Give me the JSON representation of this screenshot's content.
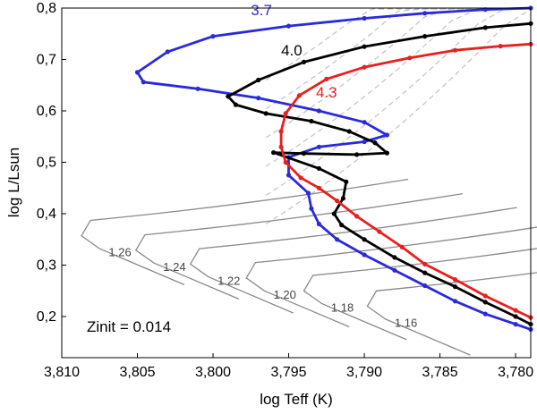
{
  "chart_data": {
    "type": "line",
    "title": "",
    "xlabel": "log Teff (K)",
    "ylabel": "log L/Lsun",
    "xlim": [
      3.81,
      3.779
    ],
    "ylim": [
      0.12,
      0.8
    ],
    "x_inverted": true,
    "decimal_separator": ",",
    "xticks": [
      3.81,
      3.805,
      3.8,
      3.795,
      3.79,
      3.785,
      3.78
    ],
    "xtick_labels": [
      "3,810",
      "3,805",
      "3,800",
      "3,795",
      "3,790",
      "3,785",
      "3,780"
    ],
    "yticks": [
      0.2,
      0.3,
      0.4,
      0.5,
      0.6,
      0.7,
      0.8
    ],
    "ytick_labels": [
      "0,2",
      "0,3",
      "0,4",
      "0,5",
      "0,6",
      "0,7",
      "0,8"
    ],
    "annotation": "Zinit = 0.014",
    "colors": {
      "blue": "#2a2adb",
      "black": "#000000",
      "red": "#e81f1f",
      "grey": "#8a8a8a",
      "dashed": "#bdbdbd"
    },
    "series": [
      {
        "name": "3.7",
        "color": "#2a2adb",
        "label_at": [
          3.7968,
          0.786
        ],
        "points": [
          [
            3.779,
            0.8
          ],
          [
            3.782,
            0.797
          ],
          [
            3.786,
            0.79
          ],
          [
            3.79,
            0.78
          ],
          [
            3.795,
            0.765
          ],
          [
            3.8,
            0.745
          ],
          [
            3.803,
            0.715
          ],
          [
            3.805,
            0.675
          ],
          [
            3.8046,
            0.656
          ],
          [
            3.801,
            0.643
          ],
          [
            3.797,
            0.625
          ],
          [
            3.793,
            0.6
          ],
          [
            3.79,
            0.578
          ],
          [
            3.7885,
            0.553
          ],
          [
            3.79,
            0.54
          ],
          [
            3.793,
            0.53
          ],
          [
            3.795,
            0.51
          ],
          [
            3.795,
            0.475
          ],
          [
            3.7937,
            0.44
          ],
          [
            3.7935,
            0.41
          ],
          [
            3.793,
            0.38
          ],
          [
            3.7918,
            0.35
          ],
          [
            3.79,
            0.32
          ],
          [
            3.788,
            0.29
          ],
          [
            3.786,
            0.26
          ],
          [
            3.784,
            0.23
          ],
          [
            3.782,
            0.205
          ],
          [
            3.78,
            0.185
          ],
          [
            3.779,
            0.175
          ]
        ]
      },
      {
        "name": "4.0",
        "color": "#000000",
        "label_at": [
          3.7948,
          0.708
        ],
        "points": [
          [
            3.779,
            0.77
          ],
          [
            3.782,
            0.762
          ],
          [
            3.786,
            0.745
          ],
          [
            3.79,
            0.725
          ],
          [
            3.794,
            0.695
          ],
          [
            3.797,
            0.66
          ],
          [
            3.799,
            0.628
          ],
          [
            3.7985,
            0.612
          ],
          [
            3.7965,
            0.595
          ],
          [
            3.7935,
            0.58
          ],
          [
            3.791,
            0.56
          ],
          [
            3.7893,
            0.538
          ],
          [
            3.7885,
            0.518
          ],
          [
            3.7905,
            0.515
          ],
          [
            3.794,
            0.517
          ],
          [
            3.796,
            0.519
          ],
          [
            3.793,
            0.488
          ],
          [
            3.7912,
            0.462
          ],
          [
            3.7914,
            0.43
          ],
          [
            3.792,
            0.4
          ],
          [
            3.7915,
            0.378
          ],
          [
            3.79,
            0.35
          ],
          [
            3.788,
            0.315
          ],
          [
            3.786,
            0.285
          ],
          [
            3.784,
            0.258
          ],
          [
            3.782,
            0.228
          ],
          [
            3.78,
            0.2
          ],
          [
            3.779,
            0.185
          ]
        ]
      },
      {
        "name": "4.3",
        "color": "#e81f1f",
        "label_at": [
          3.7925,
          0.626
        ],
        "points": [
          [
            3.779,
            0.73
          ],
          [
            3.781,
            0.726
          ],
          [
            3.784,
            0.718
          ],
          [
            3.787,
            0.703
          ],
          [
            3.79,
            0.685
          ],
          [
            3.7925,
            0.662
          ],
          [
            3.7943,
            0.63
          ],
          [
            3.7952,
            0.595
          ],
          [
            3.7955,
            0.56
          ],
          [
            3.7955,
            0.53
          ],
          [
            3.7952,
            0.5
          ],
          [
            3.7942,
            0.47
          ],
          [
            3.793,
            0.45
          ],
          [
            3.7918,
            0.425
          ],
          [
            3.7905,
            0.395
          ],
          [
            3.789,
            0.365
          ],
          [
            3.7875,
            0.335
          ],
          [
            3.786,
            0.302
          ],
          [
            3.784,
            0.272
          ],
          [
            3.782,
            0.24
          ],
          [
            3.78,
            0.212
          ],
          [
            3.779,
            0.198
          ]
        ]
      }
    ],
    "grey_tracks": [
      {
        "label": "1.26",
        "label_at": [
          3.8069,
          0.317
        ]
      },
      {
        "label": "1.24",
        "label_at": [
          3.8033,
          0.289
        ]
      },
      {
        "label": "1.22",
        "label_at": [
          3.7997,
          0.262
        ]
      },
      {
        "label": "1.20",
        "label_at": [
          3.796,
          0.235
        ]
      },
      {
        "label": "1.18",
        "label_at": [
          3.7922,
          0.21
        ]
      },
      {
        "label": "1.16",
        "label_at": [
          3.788,
          0.18
        ]
      }
    ]
  }
}
